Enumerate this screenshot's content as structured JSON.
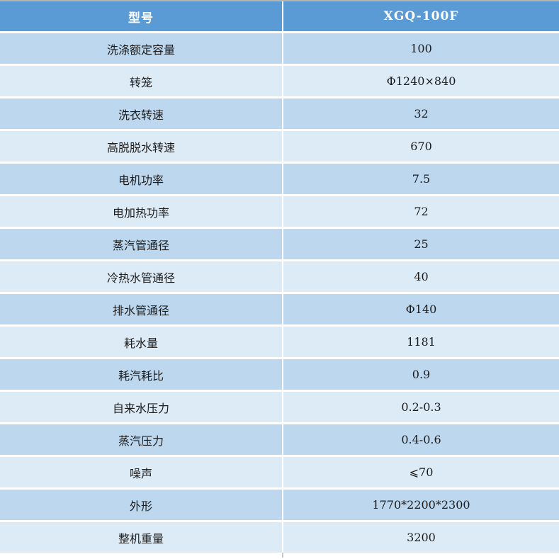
{
  "table": {
    "header": {
      "label": "型号",
      "value": "XGQ-100F"
    },
    "rows": [
      {
        "label": "洗涤额定容量",
        "value": "100"
      },
      {
        "label": "转笼",
        "value": "Φ1240×840"
      },
      {
        "label": "洗衣转速",
        "value": "32"
      },
      {
        "label": "高脱脱水转速",
        "value": "670"
      },
      {
        "label": "电机功率",
        "value": "7.5"
      },
      {
        "label": "电加热功率",
        "value": "72"
      },
      {
        "label": "蒸汽管通径",
        "value": "25"
      },
      {
        "label": "冷热水管通径",
        "value": "40"
      },
      {
        "label": "排水管通径",
        "value": "Φ140"
      },
      {
        "label": "耗水量",
        "value": "1181"
      },
      {
        "label": "耗汽耗比",
        "value": "0.9"
      },
      {
        "label": "自来水压力",
        "value": "0.2-0.3"
      },
      {
        "label": "蒸汽压力",
        "value": "0.4-0.6"
      },
      {
        "label": "噪声",
        "value": "⩽70"
      },
      {
        "label": "外形",
        "value": "1770*2200*2300"
      },
      {
        "label": "整机重量",
        "value": "3200"
      }
    ],
    "colors": {
      "header_bg": "#5b9bd5",
      "header_text": "#ffffff",
      "band_medium": "#bdd7ee",
      "band_light": "#ddebf7",
      "cell_gap": "#ffffff",
      "top_border": "#b3b5b2",
      "body_text": "#1c1c1c"
    }
  }
}
